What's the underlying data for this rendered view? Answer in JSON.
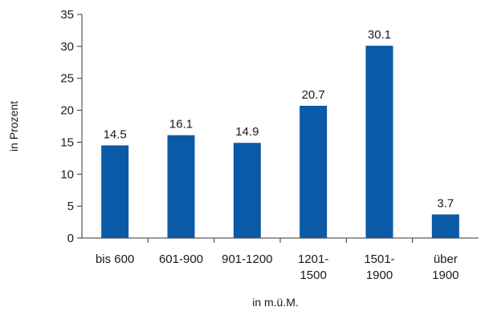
{
  "chart_data": {
    "type": "bar",
    "categories": [
      [
        "bis 600"
      ],
      [
        "601-900"
      ],
      [
        "901-1200"
      ],
      [
        "1201-",
        "1500"
      ],
      [
        "1501-",
        "1900"
      ],
      [
        "über",
        "1900"
      ]
    ],
    "values": [
      14.5,
      16.1,
      14.9,
      20.7,
      30.1,
      3.7
    ],
    "data_labels": [
      "14.5",
      "16.1",
      "14.9",
      "20.7",
      "30.1",
      "3.7"
    ],
    "xlabel": "in m.ü.M.",
    "ylabel": "in Prozent",
    "ylim": [
      0,
      35
    ],
    "yticks": [
      "0",
      "5",
      "10",
      "15",
      "20",
      "25",
      "30",
      "35"
    ],
    "grid": false,
    "bar_color": "#0b5aa8",
    "axis_color": "#333333"
  }
}
